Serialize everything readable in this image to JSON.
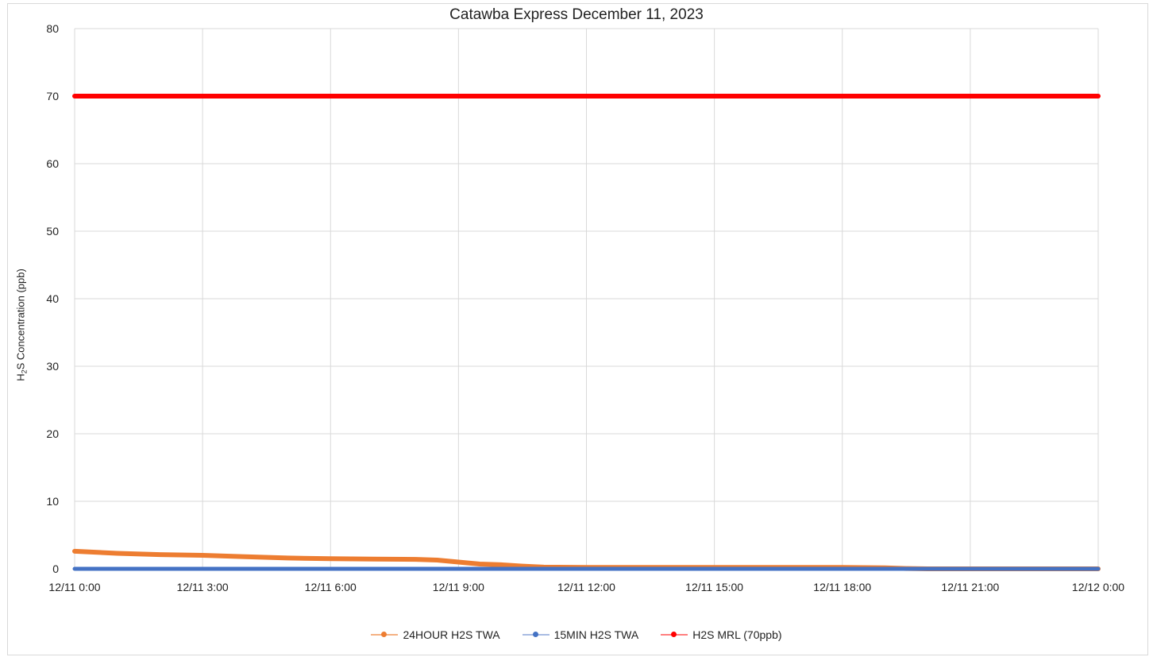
{
  "chart_data": {
    "type": "line",
    "title": "Catawba Express December 11, 2023",
    "ylabel_main": "H",
    "ylabel_sub": "2",
    "ylabel_rest": "S Concentration (ppb)",
    "ylim": [
      0,
      80
    ],
    "yticks": [
      "0",
      "10",
      "20",
      "30",
      "40",
      "50",
      "60",
      "70",
      "80"
    ],
    "xlim_hours": [
      0,
      24
    ],
    "xticks": [
      "12/11 0:00",
      "12/11 3:00",
      "12/11 6:00",
      "12/11 9:00",
      "12/11 12:00",
      "12/11 15:00",
      "12/11 18:00",
      "12/11 21:00",
      "12/12 0:00"
    ],
    "grid": true,
    "legend_position": "bottom",
    "series": [
      {
        "name": "24HOUR H2S TWA",
        "color": "#ED7D31",
        "points": [
          [
            0,
            2.6
          ],
          [
            1,
            2.3
          ],
          [
            2,
            2.1
          ],
          [
            3,
            2.0
          ],
          [
            4,
            1.8
          ],
          [
            5,
            1.6
          ],
          [
            6,
            1.5
          ],
          [
            7,
            1.45
          ],
          [
            8,
            1.4
          ],
          [
            8.5,
            1.3
          ],
          [
            9,
            1.0
          ],
          [
            9.5,
            0.7
          ],
          [
            10,
            0.6
          ],
          [
            10.5,
            0.4
          ],
          [
            11,
            0.25
          ],
          [
            12,
            0.2
          ],
          [
            15,
            0.2
          ],
          [
            18,
            0.2
          ],
          [
            19,
            0.15
          ],
          [
            19.5,
            0.05
          ],
          [
            20,
            0.0
          ],
          [
            24,
            0.0
          ]
        ]
      },
      {
        "name": "15MIN H2S TWA",
        "color": "#4472C4",
        "points": [
          [
            0,
            0.0
          ],
          [
            24,
            0.0
          ]
        ]
      },
      {
        "name": "H2S MRL (70ppb)",
        "color": "#FF0000",
        "points": [
          [
            0,
            70
          ],
          [
            24,
            70
          ]
        ]
      }
    ]
  }
}
